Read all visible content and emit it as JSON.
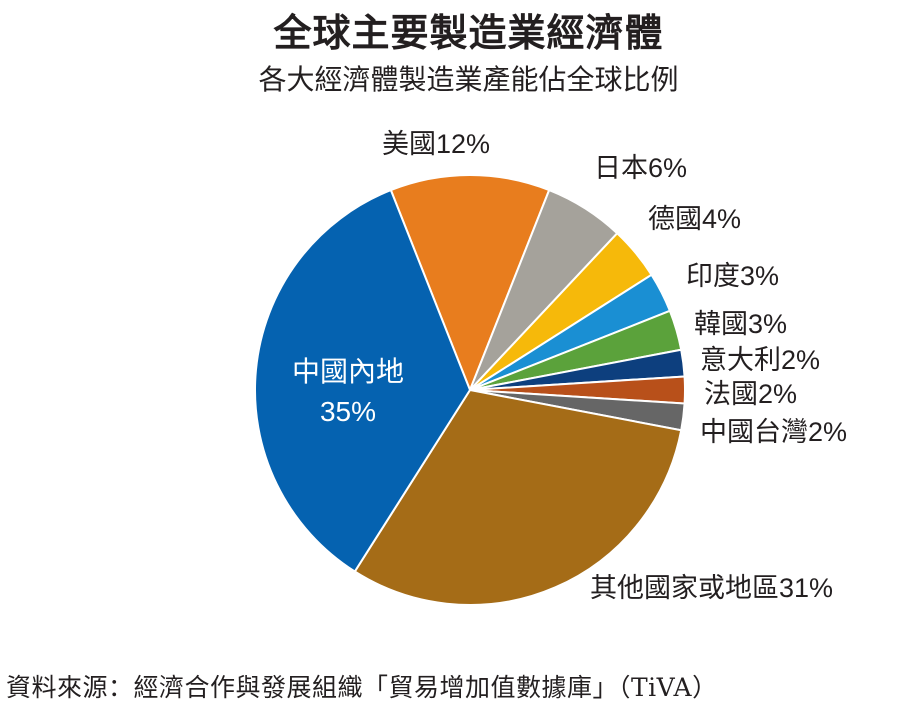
{
  "chart_data": {
    "type": "pie",
    "title": "全球主要製造業經濟體",
    "subtitle": "各大經濟體製造業產能佔全球比例",
    "slices": [
      {
        "label": "美國12%",
        "name": "美國",
        "value": 12,
        "color": "#e87d1e"
      },
      {
        "label": "日本6%",
        "name": "日本",
        "value": 6,
        "color": "#a5a29b"
      },
      {
        "label": "德國4%",
        "name": "德國",
        "value": 4,
        "color": "#f6b90a"
      },
      {
        "label": "印度3%",
        "name": "印度",
        "value": 3,
        "color": "#1a8fd3"
      },
      {
        "label": "韓國3%",
        "name": "韓國",
        "value": 3,
        "color": "#5ba23b"
      },
      {
        "label": "意大利2%",
        "name": "意大利",
        "value": 2,
        "color": "#0d3f7e"
      },
      {
        "label": "法國2%",
        "name": "法國",
        "value": 2,
        "color": "#b8501a"
      },
      {
        "label": "中國台灣2%",
        "name": "中國台灣",
        "value": 2,
        "color": "#666666"
      },
      {
        "label": "其他國家或地區31%",
        "name": "其他國家或地區",
        "value": 31,
        "color": "#a56c17"
      },
      {
        "label": "中國內地",
        "label2": "35%",
        "name": "中國內地",
        "value": 35,
        "color": "#0562b0"
      }
    ],
    "source": "資料來源：經濟合作與發展組織「貿易增加值數據庫」（TiVA）"
  }
}
